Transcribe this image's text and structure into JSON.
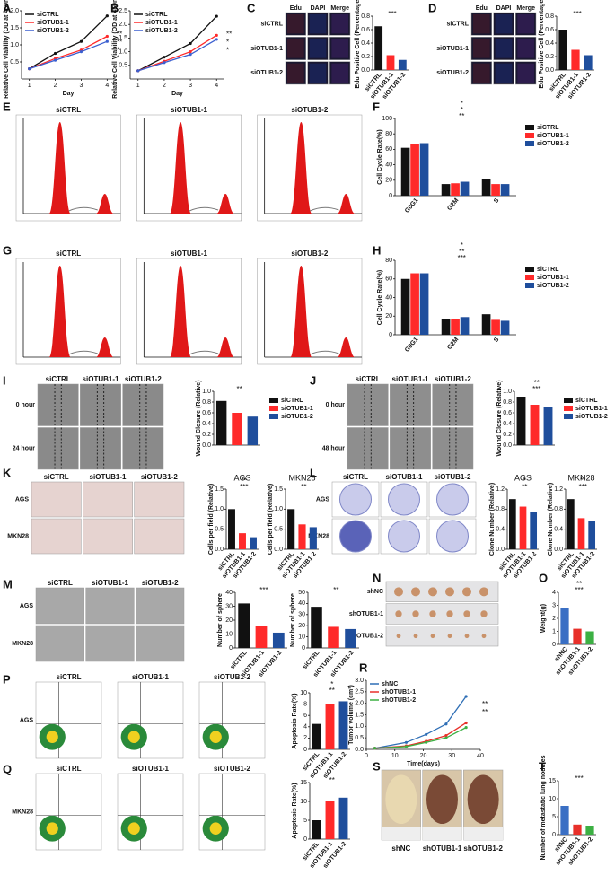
{
  "panels": [
    "A",
    "B",
    "C",
    "D",
    "E",
    "F",
    "G",
    "H",
    "I",
    "J",
    "K",
    "L",
    "M",
    "N",
    "O",
    "P",
    "R",
    "Q",
    "S",
    "T"
  ],
  "image_panels": {
    "C": {
      "columns": [
        "Edu",
        "DAPI",
        "Merge"
      ],
      "rows": [
        "siCTRL",
        "siOTUB1-1",
        "siOTUB1-2"
      ]
    },
    "D": {
      "columns": [
        "Edu",
        "DAPI",
        "Merge"
      ],
      "rows": [
        "siCTRL",
        "siOTUB1-1",
        "siOTUB1-2"
      ]
    },
    "E": {
      "columns": [
        "siCTRL",
        "siOTUB1-1",
        "siOTUB1-2"
      ]
    },
    "G": {
      "columns": [
        "siCTRL",
        "siOTUB1-1",
        "siOTUB1-2"
      ]
    },
    "I": {
      "columns": [
        "siCTRL",
        "siOTUB1-1",
        "siOTUB1-2"
      ],
      "rows": [
        "0 hour",
        "24 hour"
      ]
    },
    "J": {
      "columns": [
        "siCTRL",
        "siOTUB1-1",
        "siOTUB1-2"
      ],
      "rows": [
        "0 hour",
        "48 hour"
      ]
    },
    "K": {
      "columns": [
        "siCTRL",
        "siOTUB1-1",
        "siOTUB1-2"
      ],
      "rows": [
        "AGS",
        "MKN28"
      ]
    },
    "L": {
      "columns": [
        "siCTRL",
        "siOTUB1-1",
        "siOTUB1-2"
      ],
      "rows": [
        "AGS",
        "MKN28"
      ]
    },
    "M": {
      "columns": [
        "siCTRL",
        "siOTUB1-1",
        "siOTUB1-2"
      ],
      "rows": [
        "AGS",
        "MKN28"
      ]
    },
    "N": {
      "rows": [
        "shNC",
        "shOTUB1-1",
        "shOTUB1-2"
      ]
    },
    "P": {
      "columns": [
        "siCTRL",
        "siOTUB1-1",
        "siOTUB1-2"
      ],
      "rows": [
        "AGS"
      ]
    },
    "Q": {
      "columns": [
        "siCTRL",
        "siOTUB1-1",
        "siOTUB1-2"
      ],
      "rows": [
        "MKN28"
      ]
    },
    "S": {
      "columns": [
        "shNC",
        "shOTUB1-1",
        "shOTUB1-2"
      ]
    }
  },
  "chart_data": [
    {
      "type": "line",
      "ylabel": "Relative Cell Viability (OD at 450nm)",
      "xlabel": "Day",
      "x": [
        1,
        2,
        3,
        4
      ],
      "xlim": [
        0.7,
        4.3
      ],
      "xticks": [
        1,
        2,
        3,
        4
      ],
      "ylim": [
        0,
        2
      ],
      "yticks": [
        {
          "value": 0.5,
          "label": "0.5"
        },
        {
          "value": 1,
          "label": "1.0"
        },
        {
          "value": 1.5,
          "label": "1.5"
        },
        {
          "value": 2,
          "label": "2.0"
        }
      ],
      "legend": "upper left",
      "series": [
        {
          "name": "siCTRL",
          "color": "#111111",
          "values": [
            0.3,
            0.75,
            1.1,
            1.85
          ]
        },
        {
          "name": "siOTUB1-1",
          "color": "#ff2a2a",
          "values": [
            0.3,
            0.6,
            0.85,
            1.25
          ]
        },
        {
          "name": "siOTUB1-2",
          "color": "#3b5fd0",
          "values": [
            0.3,
            0.55,
            0.8,
            1.1
          ]
        }
      ],
      "annotations": [
        "**",
        "**",
        "*",
        "*"
      ]
    },
    {
      "type": "line",
      "ylabel": "Relative Cell Viability (OD at 450nm)",
      "xlabel": "Day",
      "x": [
        1,
        2,
        3,
        4
      ],
      "xlim": [
        0.7,
        4.3
      ],
      "xticks": [
        1,
        2,
        3,
        4
      ],
      "ylim": [
        0,
        2.5
      ],
      "yticks": [
        {
          "value": 0.5,
          "label": "0.5"
        },
        {
          "value": 1,
          "label": "1.0"
        },
        {
          "value": 1.5,
          "label": "1.5"
        },
        {
          "value": 2,
          "label": "2.0"
        },
        {
          "value": 2.5,
          "label": "2.5"
        }
      ],
      "legend": "upper left",
      "series": [
        {
          "name": "siCTRL",
          "color": "#111111",
          "values": [
            0.3,
            0.8,
            1.3,
            2.3
          ]
        },
        {
          "name": "siOTUB1-1",
          "color": "#ff2a2a",
          "values": [
            0.3,
            0.65,
            1.0,
            1.6
          ]
        },
        {
          "name": "siOTUB1-2",
          "color": "#3b5fd0",
          "values": [
            0.3,
            0.6,
            0.9,
            1.45
          ]
        }
      ],
      "annotations": [
        "**",
        "*",
        "*"
      ]
    },
    {
      "type": "bar",
      "ylabel": "Edu Positive Cell (Percentage)",
      "categories": [
        "siCTRL",
        "siOTUB1-1",
        "siOTUB1-2"
      ],
      "values": [
        0.65,
        0.22,
        0.15
      ],
      "colors": [
        "#111111",
        "#ff2a2a",
        "#1f4e9c"
      ],
      "ylim": [
        0,
        0.8
      ],
      "yticks": [
        {
          "value": 0,
          "label": "0.0"
        },
        {
          "value": 0.2,
          "label": "0.2"
        },
        {
          "value": 0.4,
          "label": "0.4"
        },
        {
          "value": 0.6,
          "label": "0.6"
        },
        {
          "value": 0.8,
          "label": "0.8"
        }
      ],
      "annotations": [
        "***"
      ]
    },
    {
      "type": "bar",
      "ylabel": "Edu Positive Cell (Percentage)",
      "categories": [
        "siCTRL",
        "siOTUB1-1",
        "siOTUB1-2"
      ],
      "values": [
        0.6,
        0.3,
        0.22
      ],
      "colors": [
        "#111111",
        "#ff2a2a",
        "#1f4e9c"
      ],
      "ylim": [
        0,
        0.8
      ],
      "yticks": [
        {
          "value": 0,
          "label": "0.0"
        },
        {
          "value": 0.2,
          "label": "0.2"
        },
        {
          "value": 0.4,
          "label": "0.4"
        },
        {
          "value": 0.6,
          "label": "0.6"
        },
        {
          "value": 0.8,
          "label": "0.8"
        }
      ],
      "annotations": [
        "***"
      ]
    },
    {
      "type": "grouped-bar",
      "ylabel": "Cell Cycle Rate(%)",
      "categories": [
        "G0G1",
        "G2M",
        "S"
      ],
      "ylim": [
        0,
        100
      ],
      "yticks": [
        0,
        20,
        40,
        60,
        80,
        100
      ],
      "legend": "right",
      "series": [
        {
          "name": "siCTRL",
          "color": "#111111",
          "values": [
            62,
            15,
            22
          ]
        },
        {
          "name": "siOTUB1-1",
          "color": "#ff2a2a",
          "values": [
            67,
            16,
            15
          ]
        },
        {
          "name": "siOTUB1-2",
          "color": "#1f4e9c",
          "values": [
            68,
            18,
            15
          ]
        }
      ],
      "annotations": [
        "**",
        "*",
        "*"
      ]
    },
    {
      "type": "grouped-bar",
      "ylabel": "Cell Cycle Rate(%)",
      "categories": [
        "G0G1",
        "G2M",
        "S"
      ],
      "ylim": [
        0,
        80
      ],
      "yticks": [
        0,
        20,
        40,
        60,
        80
      ],
      "legend": "right",
      "series": [
        {
          "name": "siCTRL",
          "color": "#111111",
          "values": [
            60,
            17,
            22
          ]
        },
        {
          "name": "siOTUB1-1",
          "color": "#ff2a2a",
          "values": [
            66,
            17,
            16
          ]
        },
        {
          "name": "siOTUB1-2",
          "color": "#1f4e9c",
          "values": [
            66,
            19,
            15
          ]
        }
      ],
      "annotations": [
        "***",
        "**",
        "*"
      ]
    },
    {
      "type": "bar",
      "ylabel": "Wound Closure (Relative)",
      "categories": [
        "siCTRL",
        "siOTUB1-1",
        "siOTUB1-2"
      ],
      "values": [
        0.82,
        0.6,
        0.53
      ],
      "colors": [
        "#111111",
        "#ff2a2a",
        "#1f4e9c"
      ],
      "legend": "right",
      "ylim": [
        0,
        1
      ],
      "yticks": [
        {
          "value": 0,
          "label": "0.0"
        },
        {
          "value": 0.2,
          "label": "0.2"
        },
        {
          "value": 0.4,
          "label": "0.4"
        },
        {
          "value": 0.6,
          "label": "0.6"
        },
        {
          "value": 0.8,
          "label": "0.8"
        },
        {
          "value": 1,
          "label": "1.0"
        }
      ],
      "annotations": [
        "**"
      ]
    },
    {
      "type": "bar",
      "ylabel": "Wound Closure (Relative)",
      "categories": [
        "siCTRL",
        "siOTUB1-1",
        "siOTUB1-2"
      ],
      "values": [
        0.9,
        0.75,
        0.7
      ],
      "colors": [
        "#111111",
        "#ff2a2a",
        "#1f4e9c"
      ],
      "legend": "right",
      "ylim": [
        0,
        1
      ],
      "yticks": [
        {
          "value": 0,
          "label": "0.0"
        },
        {
          "value": 0.2,
          "label": "0.2"
        },
        {
          "value": 0.4,
          "label": "0.4"
        },
        {
          "value": 0.6,
          "label": "0.6"
        },
        {
          "value": 0.8,
          "label": "0.8"
        },
        {
          "value": 1,
          "label": "1.0"
        }
      ],
      "annotations": [
        "***",
        "**"
      ]
    },
    {
      "type": "bar",
      "title": "AGS",
      "ylabel": "Cells per field (Relative)",
      "categories": [
        "siCTRL",
        "siOTUB1-1",
        "siOTUB1-2"
      ],
      "values": [
        1.0,
        0.4,
        0.3
      ],
      "colors": [
        "#111111",
        "#ff2a2a",
        "#1f4e9c"
      ],
      "ylim": [
        0,
        1.5
      ],
      "yticks": [
        {
          "value": 0,
          "label": "0.0"
        },
        {
          "value": 0.5,
          "label": "0.5"
        },
        {
          "value": 1,
          "label": "1.0"
        },
        {
          "value": 1.5,
          "label": "1.5"
        }
      ],
      "annotations": [
        "***",
        "**"
      ]
    },
    {
      "type": "bar",
      "title": "MKN28",
      "ylabel": "Cells per field (Relative)",
      "categories": [
        "siCTRL",
        "siOTUB1-1",
        "siOTUB1-2"
      ],
      "values": [
        1.0,
        0.62,
        0.55
      ],
      "colors": [
        "#111111",
        "#ff2a2a",
        "#1f4e9c"
      ],
      "ylim": [
        0,
        1.5
      ],
      "yticks": [
        {
          "value": 0,
          "label": "0.0"
        },
        {
          "value": 0.5,
          "label": "0.5"
        },
        {
          "value": 1,
          "label": "1.0"
        },
        {
          "value": 1.5,
          "label": "1.5"
        }
      ],
      "annotations": [
        "**"
      ]
    },
    {
      "type": "bar",
      "title": "AGS",
      "ylabel": "Clone Number (Relative)",
      "categories": [
        "siCTRL",
        "siOTUB1-1",
        "siOTUB1-2"
      ],
      "values": [
        1.0,
        0.85,
        0.75
      ],
      "colors": [
        "#111111",
        "#ff2a2a",
        "#1f4e9c"
      ],
      "ylim": [
        0,
        1.2
      ],
      "yticks": [
        {
          "value": 0,
          "label": "0.0"
        },
        {
          "value": 0.4,
          "label": "0.4"
        },
        {
          "value": 0.8,
          "label": "0.8"
        },
        {
          "value": 1.2,
          "label": "1.2"
        }
      ],
      "annotations": [
        "**",
        "*"
      ]
    },
    {
      "type": "bar",
      "title": "MKN28",
      "ylabel": "Clone Number (Relative)",
      "categories": [
        "siCTRL",
        "siOTUB1-1",
        "siOTUB1-2"
      ],
      "values": [
        1.0,
        0.62,
        0.57
      ],
      "colors": [
        "#111111",
        "#ff2a2a",
        "#1f4e9c"
      ],
      "ylim": [
        0,
        1.2
      ],
      "yticks": [
        {
          "value": 0,
          "label": "0.0"
        },
        {
          "value": 0.4,
          "label": "0.4"
        },
        {
          "value": 0.8,
          "label": "0.8"
        },
        {
          "value": 1.2,
          "label": "1.2"
        }
      ],
      "annotations": [
        "***",
        "**"
      ]
    },
    {
      "type": "bar",
      "ylabel": "Number of sphere",
      "categories": [
        "siCTRL",
        "siOTUB1-1",
        "siOTUB1-2"
      ],
      "values": [
        32,
        16,
        11
      ],
      "colors": [
        "#111111",
        "#ff2a2a",
        "#1f4e9c"
      ],
      "ylim": [
        0,
        40
      ],
      "yticks": [
        0,
        10,
        20,
        30,
        40
      ],
      "annotations": [
        "***"
      ]
    },
    {
      "type": "bar",
      "ylabel": "Number of sphere",
      "categories": [
        "siCTRL",
        "siOTUB1-1",
        "siOTUB1-2"
      ],
      "values": [
        37,
        19,
        17
      ],
      "colors": [
        "#111111",
        "#ff2a2a",
        "#1f4e9c"
      ],
      "ylim": [
        0,
        50
      ],
      "yticks": [
        0,
        10,
        20,
        30,
        40,
        50
      ],
      "annotations": [
        "**"
      ]
    },
    {
      "type": "bar",
      "ylabel": "Weight(g)",
      "categories": [
        "shNC",
        "shOTUB1-1",
        "shOTUB1-2"
      ],
      "values": [
        2.8,
        1.2,
        1.0
      ],
      "colors": [
        "#3a6fc4",
        "#e8302a",
        "#3cb043"
      ],
      "ylim": [
        0,
        4
      ],
      "yticks": [
        0,
        1,
        2,
        3,
        4
      ],
      "annotations": [
        "***",
        "**"
      ]
    },
    {
      "type": "bar",
      "ylabel": "Apoptosis Rate(%)",
      "categories": [
        "siCTRL",
        "siOTUB1-1",
        "siOTUB1-2"
      ],
      "values": [
        4.5,
        8,
        8.5
      ],
      "colors": [
        "#111111",
        "#ff2a2a",
        "#1f4e9c"
      ],
      "ylim": [
        0,
        10
      ],
      "yticks": [
        0,
        2,
        4,
        6,
        8,
        10
      ],
      "annotations": [
        "**",
        "*"
      ]
    },
    {
      "type": "bar",
      "ylabel": "Apoptosis Rate(%)",
      "categories": [
        "siCTRL",
        "siOTUB1-1",
        "siOTUB1-2"
      ],
      "values": [
        5,
        10,
        11
      ],
      "colors": [
        "#111111",
        "#ff2a2a",
        "#1f4e9c"
      ],
      "ylim": [
        0,
        15
      ],
      "yticks": [
        0,
        5,
        10,
        15
      ],
      "annotations": [
        "**"
      ]
    },
    {
      "type": "line",
      "ylabel": "Tumor volume (cm³)",
      "xlabel": "Time(days)",
      "x": [
        3,
        14,
        21,
        28,
        35
      ],
      "xlim": [
        0,
        40
      ],
      "xticks": [
        0,
        10,
        20,
        30,
        40
      ],
      "ylim": [
        0,
        3
      ],
      "yticks": [
        {
          "value": 0,
          "label": "0.0"
        },
        {
          "value": 0.5,
          "label": "0.5"
        },
        {
          "value": 1,
          "label": "1.0"
        },
        {
          "value": 1.5,
          "label": "1.5"
        },
        {
          "value": 2,
          "label": "2.0"
        },
        {
          "value": 2.5,
          "label": "2.5"
        },
        {
          "value": 3,
          "label": "3.0"
        }
      ],
      "legend": "upper left",
      "series": [
        {
          "name": "shNC",
          "color": "#2e6eb5",
          "values": [
            0.05,
            0.3,
            0.65,
            1.1,
            2.3
          ]
        },
        {
          "name": "shOTUB1-1",
          "color": "#e8302a",
          "values": [
            0.05,
            0.15,
            0.35,
            0.6,
            1.15
          ]
        },
        {
          "name": "shOTUB1-2",
          "color": "#3cb043",
          "values": [
            0.05,
            0.12,
            0.3,
            0.5,
            0.95
          ]
        }
      ],
      "annotations": [
        "**",
        "**"
      ]
    },
    {
      "type": "bar",
      "ylabel": "Number of metastatic lung nodules",
      "categories": [
        "shNC",
        "shOTUB1-1",
        "shOTUB1-2"
      ],
      "values": [
        8,
        2.8,
        2.5
      ],
      "colors": [
        "#3a6fc4",
        "#e8302a",
        "#3cb043"
      ],
      "ylim": [
        0,
        15
      ],
      "yticks": [
        0,
        5,
        10,
        15
      ],
      "annotations": [
        "***"
      ]
    }
  ]
}
